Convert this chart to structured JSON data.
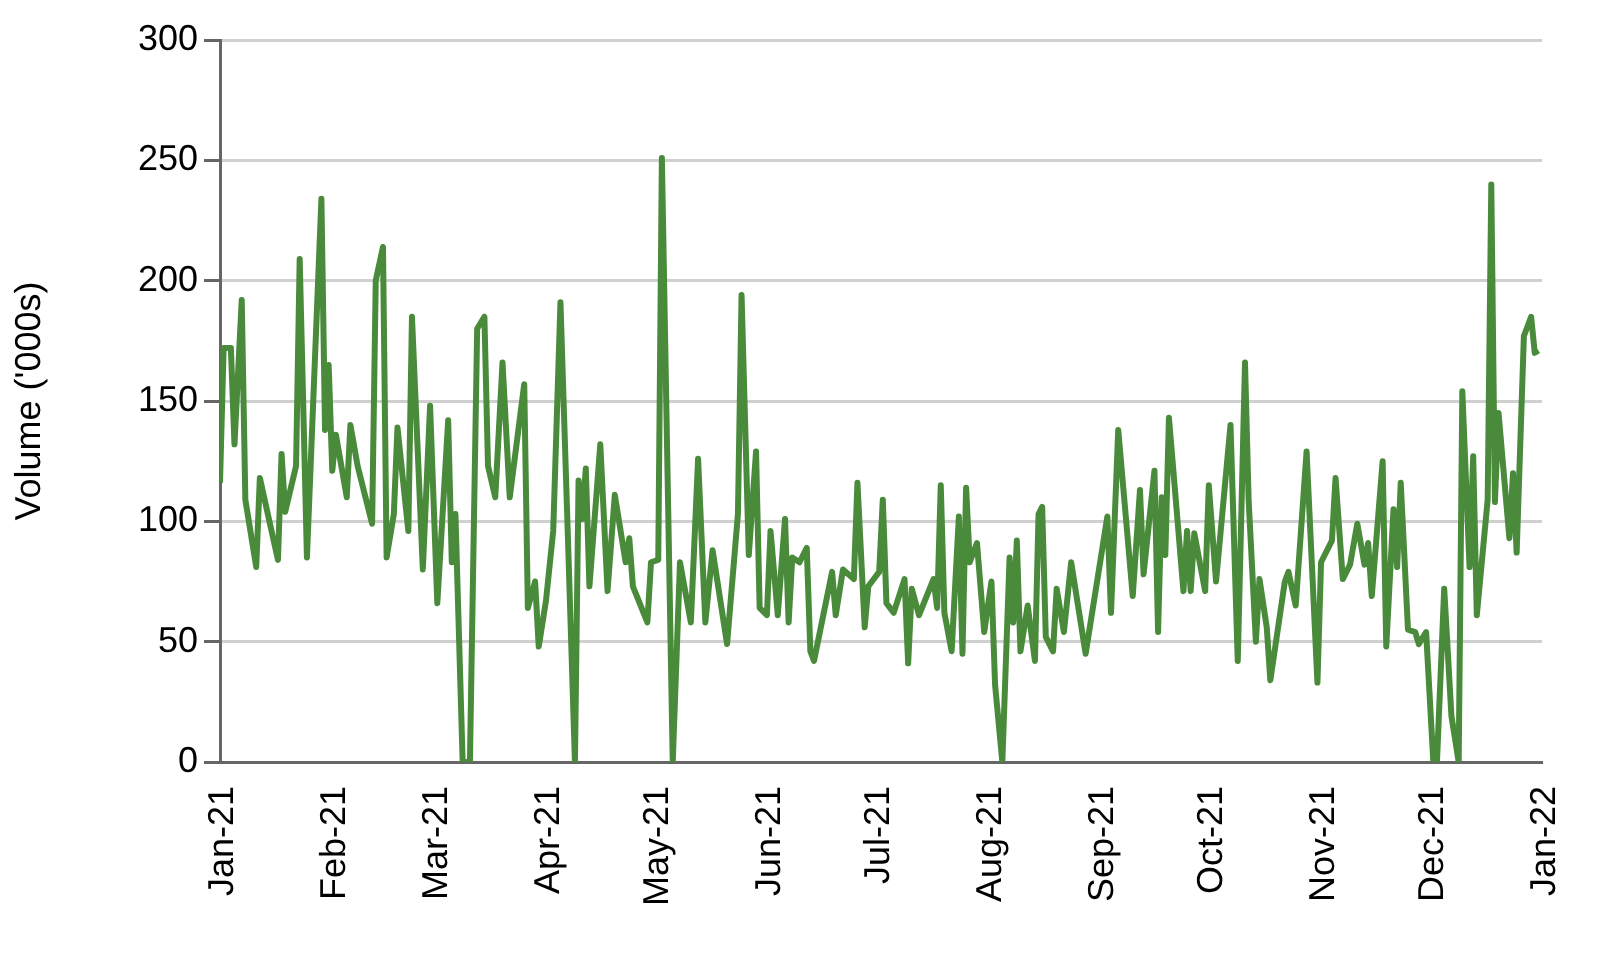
{
  "chart_data": {
    "type": "line",
    "ylabel": "Volume ('000s)",
    "grid": "y",
    "legend": false,
    "marker": "none",
    "line_style": "solid",
    "xlim": [
      "2021-01-01",
      "2022-01-01"
    ],
    "ylim": [
      0,
      300
    ],
    "yticks": [
      0,
      50,
      100,
      150,
      200,
      250,
      300
    ],
    "xticks": [
      {
        "value": "2021-01-01",
        "label": "Jan-21"
      },
      {
        "value": "2021-02-01",
        "label": "Feb-21"
      },
      {
        "value": "2021-03-01",
        "label": "Mar-21"
      },
      {
        "value": "2021-04-01",
        "label": "Apr-21"
      },
      {
        "value": "2021-05-01",
        "label": "May-21"
      },
      {
        "value": "2021-06-01",
        "label": "Jun-21"
      },
      {
        "value": "2021-07-01",
        "label": "Jul-21"
      },
      {
        "value": "2021-08-01",
        "label": "Aug-21"
      },
      {
        "value": "2021-09-01",
        "label": "Sep-21"
      },
      {
        "value": "2021-10-01",
        "label": "Oct-21"
      },
      {
        "value": "2021-11-01",
        "label": "Nov-21"
      },
      {
        "value": "2021-12-01",
        "label": "Dec-21"
      },
      {
        "value": "2022-01-01",
        "label": "Jan-22"
      }
    ],
    "series": [
      {
        "color": "#4a8b3b",
        "x": [
          "2021-01-01",
          "2021-01-02",
          "2021-01-04",
          "2021-01-05",
          "2021-01-07",
          "2021-01-08",
          "2021-01-11",
          "2021-01-12",
          "2021-01-17",
          "2021-01-18",
          "2021-01-19",
          "2021-01-22",
          "2021-01-23",
          "2021-01-25",
          "2021-01-29",
          "2021-01-30",
          "2021-01-31",
          "2021-02-01",
          "2021-02-02",
          "2021-02-05",
          "2021-02-06",
          "2021-02-08",
          "2021-02-12",
          "2021-02-13",
          "2021-02-15",
          "2021-02-16",
          "2021-02-18",
          "2021-02-19",
          "2021-02-22",
          "2021-02-23",
          "2021-02-26",
          "2021-02-28",
          "2021-03-02",
          "2021-03-05",
          "2021-03-06",
          "2021-03-07",
          "2021-03-09",
          "2021-03-11",
          "2021-03-13",
          "2021-03-15",
          "2021-03-16",
          "2021-03-18",
          "2021-03-20",
          "2021-03-22",
          "2021-03-26",
          "2021-03-27",
          "2021-03-29",
          "2021-03-30",
          "2021-04-01",
          "2021-04-03",
          "2021-04-05",
          "2021-04-07",
          "2021-04-09",
          "2021-04-10",
          "2021-04-11",
          "2021-04-12",
          "2021-04-13",
          "2021-04-16",
          "2021-04-18",
          "2021-04-20",
          "2021-04-23",
          "2021-04-24",
          "2021-04-25",
          "2021-04-29",
          "2021-04-30",
          "2021-05-02",
          "2021-05-03",
          "2021-05-06",
          "2021-05-08",
          "2021-05-11",
          "2021-05-13",
          "2021-05-15",
          "2021-05-17",
          "2021-05-21",
          "2021-05-24",
          "2021-05-25",
          "2021-05-27",
          "2021-05-29",
          "2021-05-30",
          "2021-06-01",
          "2021-06-02",
          "2021-06-04",
          "2021-06-06",
          "2021-06-07",
          "2021-06-08",
          "2021-06-10",
          "2021-06-12",
          "2021-06-13",
          "2021-06-14",
          "2021-06-19",
          "2021-06-20",
          "2021-06-22",
          "2021-06-25",
          "2021-06-26",
          "2021-06-28",
          "2021-06-29",
          "2021-07-02",
          "2021-07-03",
          "2021-07-04",
          "2021-07-06",
          "2021-07-09",
          "2021-07-10",
          "2021-07-11",
          "2021-07-13",
          "2021-07-17",
          "2021-07-18",
          "2021-07-19",
          "2021-07-20",
          "2021-07-22",
          "2021-07-24",
          "2021-07-25",
          "2021-07-26",
          "2021-07-27",
          "2021-07-29",
          "2021-07-31",
          "2021-08-02",
          "2021-08-03",
          "2021-08-05",
          "2021-08-07",
          "2021-08-08",
          "2021-08-09",
          "2021-08-10",
          "2021-08-12",
          "2021-08-14",
          "2021-08-15",
          "2021-08-16",
          "2021-08-17",
          "2021-08-19",
          "2021-08-20",
          "2021-08-22",
          "2021-08-24",
          "2021-08-28",
          "2021-09-03",
          "2021-09-04",
          "2021-09-06",
          "2021-09-10",
          "2021-09-12",
          "2021-09-13",
          "2021-09-16",
          "2021-09-17",
          "2021-09-18",
          "2021-09-19",
          "2021-09-20",
          "2021-09-24",
          "2021-09-25",
          "2021-09-26",
          "2021-09-27",
          "2021-09-30",
          "2021-10-01",
          "2021-10-03",
          "2021-10-07",
          "2021-10-09",
          "2021-10-11",
          "2021-10-12",
          "2021-10-14",
          "2021-10-15",
          "2021-10-17",
          "2021-10-18",
          "2021-10-22",
          "2021-10-23",
          "2021-10-25",
          "2021-10-28",
          "2021-10-31",
          "2021-11-01",
          "2021-11-04",
          "2021-11-05",
          "2021-11-07",
          "2021-11-09",
          "2021-11-11",
          "2021-11-13",
          "2021-11-14",
          "2021-11-15",
          "2021-11-18",
          "2021-11-19",
          "2021-11-21",
          "2021-11-22",
          "2021-11-23",
          "2021-11-25",
          "2021-11-27",
          "2021-11-28",
          "2021-11-30",
          "2021-12-02",
          "2021-12-03",
          "2021-12-05",
          "2021-12-07",
          "2021-12-09",
          "2021-12-10",
          "2021-12-12",
          "2021-12-13",
          "2021-12-14",
          "2021-12-17",
          "2021-12-18",
          "2021-12-19",
          "2021-12-20",
          "2021-12-23",
          "2021-12-24",
          "2021-12-25",
          "2021-12-27",
          "2021-12-29",
          "2021-12-30",
          "2021-12-31"
        ],
        "values": [
          116,
          172,
          172,
          132,
          192,
          109,
          81,
          118,
          84,
          128,
          104,
          123,
          209,
          85,
          234,
          138,
          165,
          121,
          136,
          110,
          140,
          123,
          99,
          200,
          214,
          85,
          103,
          139,
          96,
          185,
          80,
          148,
          66,
          142,
          83,
          103,
          0,
          0,
          180,
          185,
          123,
          110,
          166,
          110,
          157,
          64,
          75,
          48,
          67,
          96,
          191,
          96,
          0,
          117,
          101,
          122,
          73,
          132,
          71,
          111,
          83,
          93,
          73,
          58,
          83,
          84,
          251,
          0,
          83,
          58,
          126,
          58,
          88,
          49,
          103,
          194,
          86,
          129,
          64,
          61,
          96,
          61,
          101,
          58,
          85,
          83,
          89,
          46,
          42,
          79,
          61,
          80,
          76,
          116,
          56,
          73,
          79,
          109,
          66,
          62,
          76,
          41,
          72,
          61,
          76,
          64,
          115,
          62,
          46,
          102,
          45,
          114,
          83,
          91,
          54,
          75,
          32,
          0,
          85,
          58,
          92,
          46,
          65,
          42,
          103,
          106,
          52,
          46,
          72,
          54,
          83,
          45,
          102,
          62,
          138,
          69,
          113,
          78,
          121,
          54,
          110,
          86,
          143,
          71,
          96,
          71,
          95,
          71,
          115,
          75,
          140,
          42,
          166,
          109,
          50,
          76,
          56,
          34,
          75,
          79,
          65,
          129,
          33,
          83,
          92,
          118,
          76,
          82,
          99,
          82,
          91,
          69,
          125,
          48,
          105,
          81,
          116,
          55,
          54,
          49,
          54,
          0,
          0,
          72,
          19,
          0,
          154,
          81,
          127,
          61,
          109,
          240,
          108,
          145,
          93,
          120,
          87,
          177,
          185,
          170,
          171
        ]
      }
    ]
  }
}
